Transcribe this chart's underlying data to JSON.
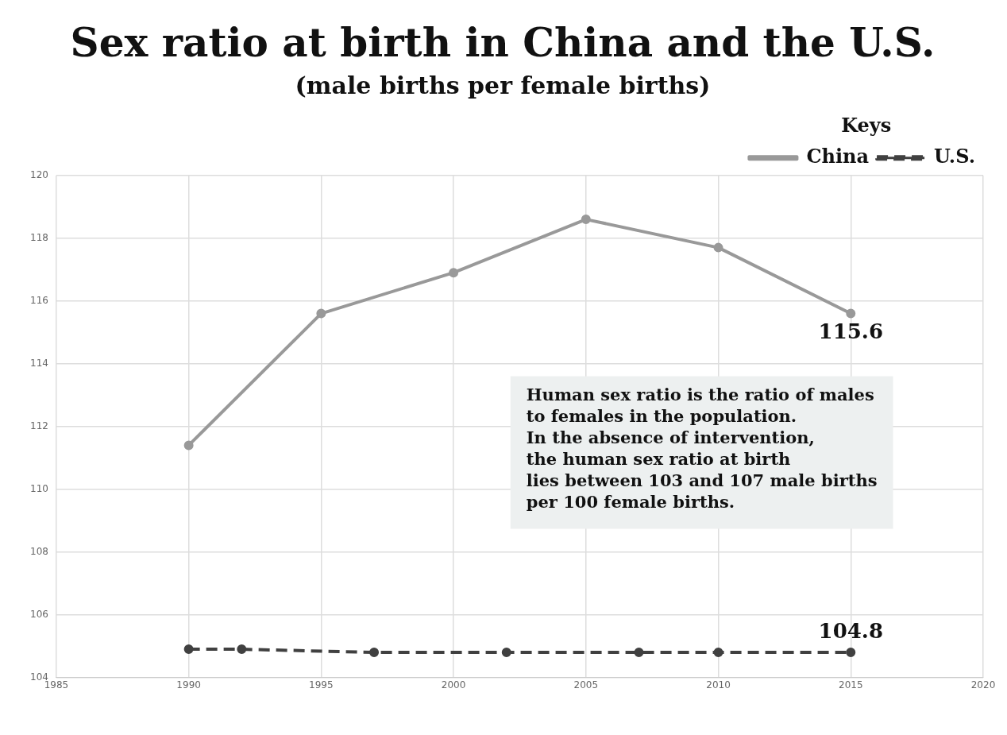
{
  "chart_data": {
    "type": "line",
    "title": "Sex ratio at birth in China and the U.S.",
    "subtitle": "(male births per female births)",
    "legend_title": "Keys",
    "legend": "top right",
    "grid": true,
    "marker": "circle",
    "xlim": [
      1985,
      2020
    ],
    "xticks": [
      1985,
      1990,
      1995,
      2000,
      2005,
      2010,
      2015,
      2020
    ],
    "ylim": [
      104,
      120
    ],
    "yticks": [
      104,
      106,
      108,
      110,
      112,
      114,
      116,
      118,
      120
    ],
    "series": [
      {
        "name": "China",
        "color": "#999999",
        "line_style": "solid",
        "x": [
          1990,
          1995,
          2000,
          2005,
          2010,
          2015
        ],
        "values": [
          111.4,
          115.6,
          116.9,
          118.6,
          117.7,
          115.6
        ]
      },
      {
        "name": "U.S.",
        "color": "#404040",
        "line_style": "dashed",
        "x": [
          1990,
          1992,
          1997,
          2002,
          2007,
          2010,
          2015
        ],
        "values": [
          104.9,
          104.9,
          104.8,
          104.8,
          104.8,
          104.8,
          104.8
        ]
      }
    ],
    "annotations": [
      {
        "text": "115.6",
        "x": 2015,
        "y": 115.6
      },
      {
        "text": "104.8",
        "x": 2015,
        "y": 104.8
      },
      "Human sex ratio is the ratio of males\nto females in the population.\nIn the absence of intervention,\nthe human sex ratio at birth\nlies between 103 and 107 male births\nper 100 female births."
    ]
  }
}
